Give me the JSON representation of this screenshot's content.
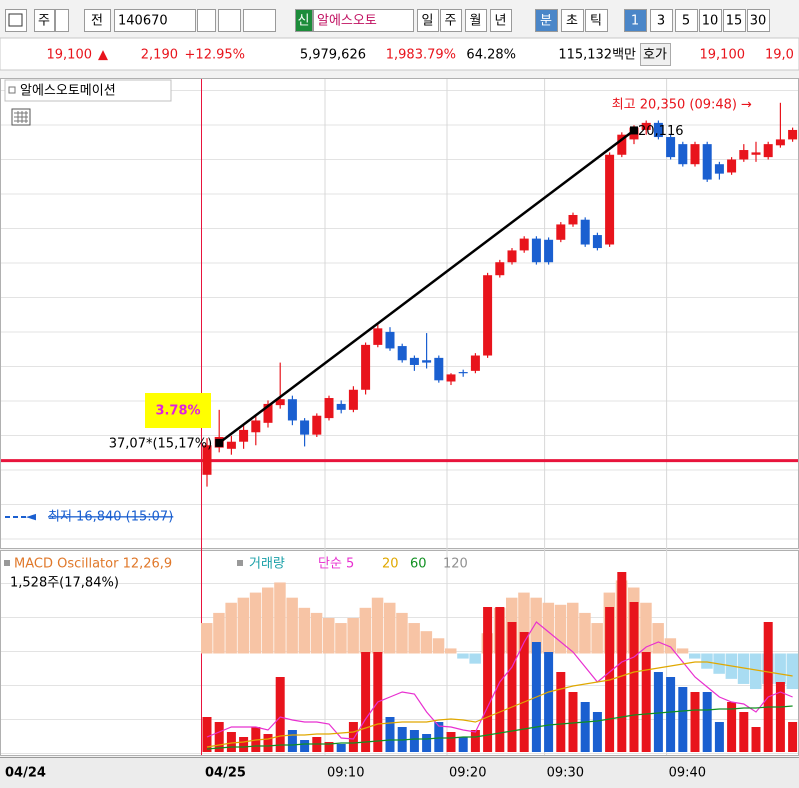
{
  "toolbar": {
    "market": "주",
    "prefix": "전",
    "code": "140670",
    "badge": "신",
    "name": "알에스오토",
    "periods": [
      "일",
      "주",
      "월",
      "년"
    ],
    "intervals": [
      "분",
      "초",
      "틱"
    ],
    "units": [
      "1",
      "3",
      "5",
      "10",
      "15",
      "30"
    ]
  },
  "quote": {
    "price": "19,100",
    "arrow": "▲",
    "change": "2,190",
    "rate": "+12.95%",
    "volume": "5,979,626",
    "volume_rate": "1,983.79%",
    "ratio": "64.28%",
    "amount": "115,132백만",
    "ask_label": "호가",
    "ask": "19,100",
    "next": "19,0"
  },
  "chart_data": {
    "type": "candlestick",
    "title": "알에스오토메이션",
    "prev_label": "04/24",
    "categories": [
      "04/25",
      null,
      null,
      null,
      null,
      null,
      null,
      null,
      null,
      null,
      "09:10",
      null,
      null,
      null,
      null,
      null,
      null,
      null,
      null,
      null,
      "09:20",
      null,
      null,
      null,
      null,
      null,
      null,
      null,
      "09:30",
      null,
      null,
      null,
      null,
      null,
      null,
      null,
      null,
      null,
      "09:40",
      null,
      null,
      null,
      null,
      null,
      null,
      null,
      null,
      null,
      null
    ],
    "open": [
      17200,
      17430,
      17420,
      17480,
      17560,
      17640,
      17790,
      17840,
      17660,
      17540,
      17680,
      17800,
      17750,
      17920,
      18300,
      18410,
      18290,
      18190,
      18170,
      18190,
      17990,
      18070,
      18080,
      18210,
      18890,
      19000,
      19100,
      19200,
      19190,
      19190,
      19320,
      19360,
      19230,
      19150,
      19910,
      20040,
      20120,
      20180,
      20060,
      20000,
      19830,
      20000,
      19830,
      19760,
      19870,
      19910,
      19890,
      19990,
      20040
    ],
    "high": [
      17510,
      17750,
      17530,
      17620,
      17700,
      17830,
      18150,
      17870,
      17680,
      17720,
      17870,
      17830,
      17950,
      18320,
      18480,
      18450,
      18310,
      18210,
      18400,
      18210,
      18060,
      18090,
      18230,
      18910,
      19020,
      19120,
      19220,
      19220,
      19210,
      19340,
      19420,
      19380,
      19250,
      19930,
      20100,
      20160,
      20200,
      20200,
      20080,
      20020,
      20020,
      20020,
      19850,
      19890,
      20000,
      20020,
      20020,
      20350,
      20140
    ],
    "low": [
      17100,
      17390,
      17370,
      17420,
      17450,
      17600,
      17760,
      17620,
      17440,
      17520,
      17660,
      17720,
      17730,
      17880,
      18280,
      18250,
      18150,
      18080,
      18100,
      17980,
      17960,
      18030,
      18060,
      18190,
      18870,
      18980,
      19080,
      18980,
      18980,
      19170,
      19300,
      19130,
      19100,
      19130,
      19890,
      20000,
      20080,
      20040,
      19870,
      19810,
      19810,
      19680,
      19700,
      19740,
      19850,
      19850,
      19870,
      19970,
      20020
    ],
    "close": [
      17450,
      17520,
      17480,
      17580,
      17660,
      17800,
      17840,
      17660,
      17540,
      17700,
      17850,
      17750,
      17920,
      18300,
      18440,
      18270,
      18170,
      18130,
      18150,
      18000,
      18050,
      18060,
      18210,
      18890,
      19000,
      19100,
      19200,
      19000,
      19000,
      19320,
      19400,
      19150,
      19120,
      19910,
      20080,
      20140,
      20180,
      20060,
      19890,
      19830,
      20000,
      19700,
      19750,
      19870,
      19950,
      19930,
      20000,
      20040,
      20120
    ],
    "up_color": "#e8141c",
    "down_color": "#1a5fd0",
    "ylim": [
      16580,
      20560
    ],
    "reference_line": 17320,
    "reference_color": "#e8143c",
    "trendline": {
      "x": [
        1,
        35
      ],
      "values": [
        17470,
        20116
      ]
    },
    "annotations": {
      "high_label": "최고 20,350 (09:48)",
      "high_arrow": "→",
      "trend_end": "20,116",
      "trend_start": "37,07*(15,17%)",
      "pct_box": "3.78%",
      "low_arrow": "◄",
      "low_label": "최저 16,840 (15:07)"
    },
    "oscillator": {
      "name": "MACD Oscillator 12,26,9",
      "ylim": [
        -100,
        100
      ],
      "positive_color": "#f7c4a5",
      "negative_color": "#a9dcf2",
      "values": [
        30,
        40,
        50,
        55,
        60,
        65,
        70,
        55,
        45,
        40,
        35,
        30,
        35,
        45,
        55,
        50,
        40,
        30,
        22,
        15,
        5,
        -5,
        -10,
        20,
        45,
        55,
        60,
        55,
        50,
        48,
        50,
        40,
        30,
        60,
        72,
        65,
        50,
        30,
        15,
        5,
        -5,
        -15,
        -20,
        -25,
        -30,
        -35,
        -30,
        -30,
        -35
      ]
    },
    "volume": {
      "name": "거래량",
      "label": "1,528주(17,84%)",
      "ylim": [
        0,
        190
      ],
      "values": [
        35,
        30,
        20,
        15,
        25,
        18,
        75,
        22,
        12,
        15,
        10,
        8,
        30,
        100,
        100,
        35,
        25,
        22,
        18,
        30,
        20,
        15,
        22,
        145,
        145,
        130,
        120,
        110,
        100,
        80,
        60,
        50,
        40,
        145,
        180,
        150,
        100,
        80,
        75,
        65,
        60,
        60,
        30,
        50,
        40,
        25,
        130,
        70,
        30
      ]
    },
    "volume_ma": [
      {
        "name": "단순 5",
        "color": "#e830d0",
        "values": [
          15,
          20,
          25,
          25,
          25,
          22,
          35,
          32,
          30,
          30,
          28,
          14,
          13,
          33,
          50,
          55,
          60,
          58,
          40,
          26,
          25,
          22,
          20,
          45,
          70,
          85,
          110,
          130,
          120,
          110,
          100,
          85,
          70,
          80,
          90,
          95,
          105,
          110,
          105,
          90,
          75,
          65,
          55,
          50,
          48,
          40,
          55,
          60,
          55
        ]
      },
      {
        "name": "20",
        "color": "#e0a800",
        "values": [
          5,
          7,
          9,
          10,
          12,
          13,
          16,
          17,
          17,
          18,
          18,
          19,
          20,
          24,
          28,
          29,
          30,
          30,
          30,
          32,
          33,
          32,
          30,
          35,
          40,
          45,
          50,
          55,
          60,
          63,
          66,
          68,
          70,
          72,
          76,
          80,
          82,
          84,
          86,
          88,
          90,
          90,
          88,
          86,
          84,
          82,
          80,
          78,
          76
        ]
      },
      {
        "name": "60",
        "color": "#109020",
        "values": [
          3,
          4,
          5,
          5,
          6,
          6,
          7,
          7,
          8,
          8,
          8,
          9,
          9,
          10,
          11,
          12,
          12,
          13,
          13,
          14,
          14,
          15,
          15,
          17,
          19,
          21,
          23,
          25,
          27,
          28,
          29,
          30,
          31,
          33,
          35,
          37,
          38,
          39,
          40,
          41,
          42,
          42,
          43,
          43,
          44,
          44,
          45,
          45,
          46
        ]
      },
      {
        "name": "120",
        "color": "#909090",
        "values": [
          null,
          null,
          null,
          null,
          null,
          null,
          null,
          null,
          null,
          null,
          null,
          null,
          null,
          null,
          null,
          null,
          null,
          null,
          null,
          null,
          null,
          null,
          null,
          null,
          null,
          null,
          null,
          null,
          null,
          null,
          null,
          null,
          null,
          null,
          null,
          null,
          null,
          null,
          null,
          null,
          null,
          null,
          null,
          null,
          null,
          null,
          null,
          null,
          null
        ]
      }
    ]
  }
}
